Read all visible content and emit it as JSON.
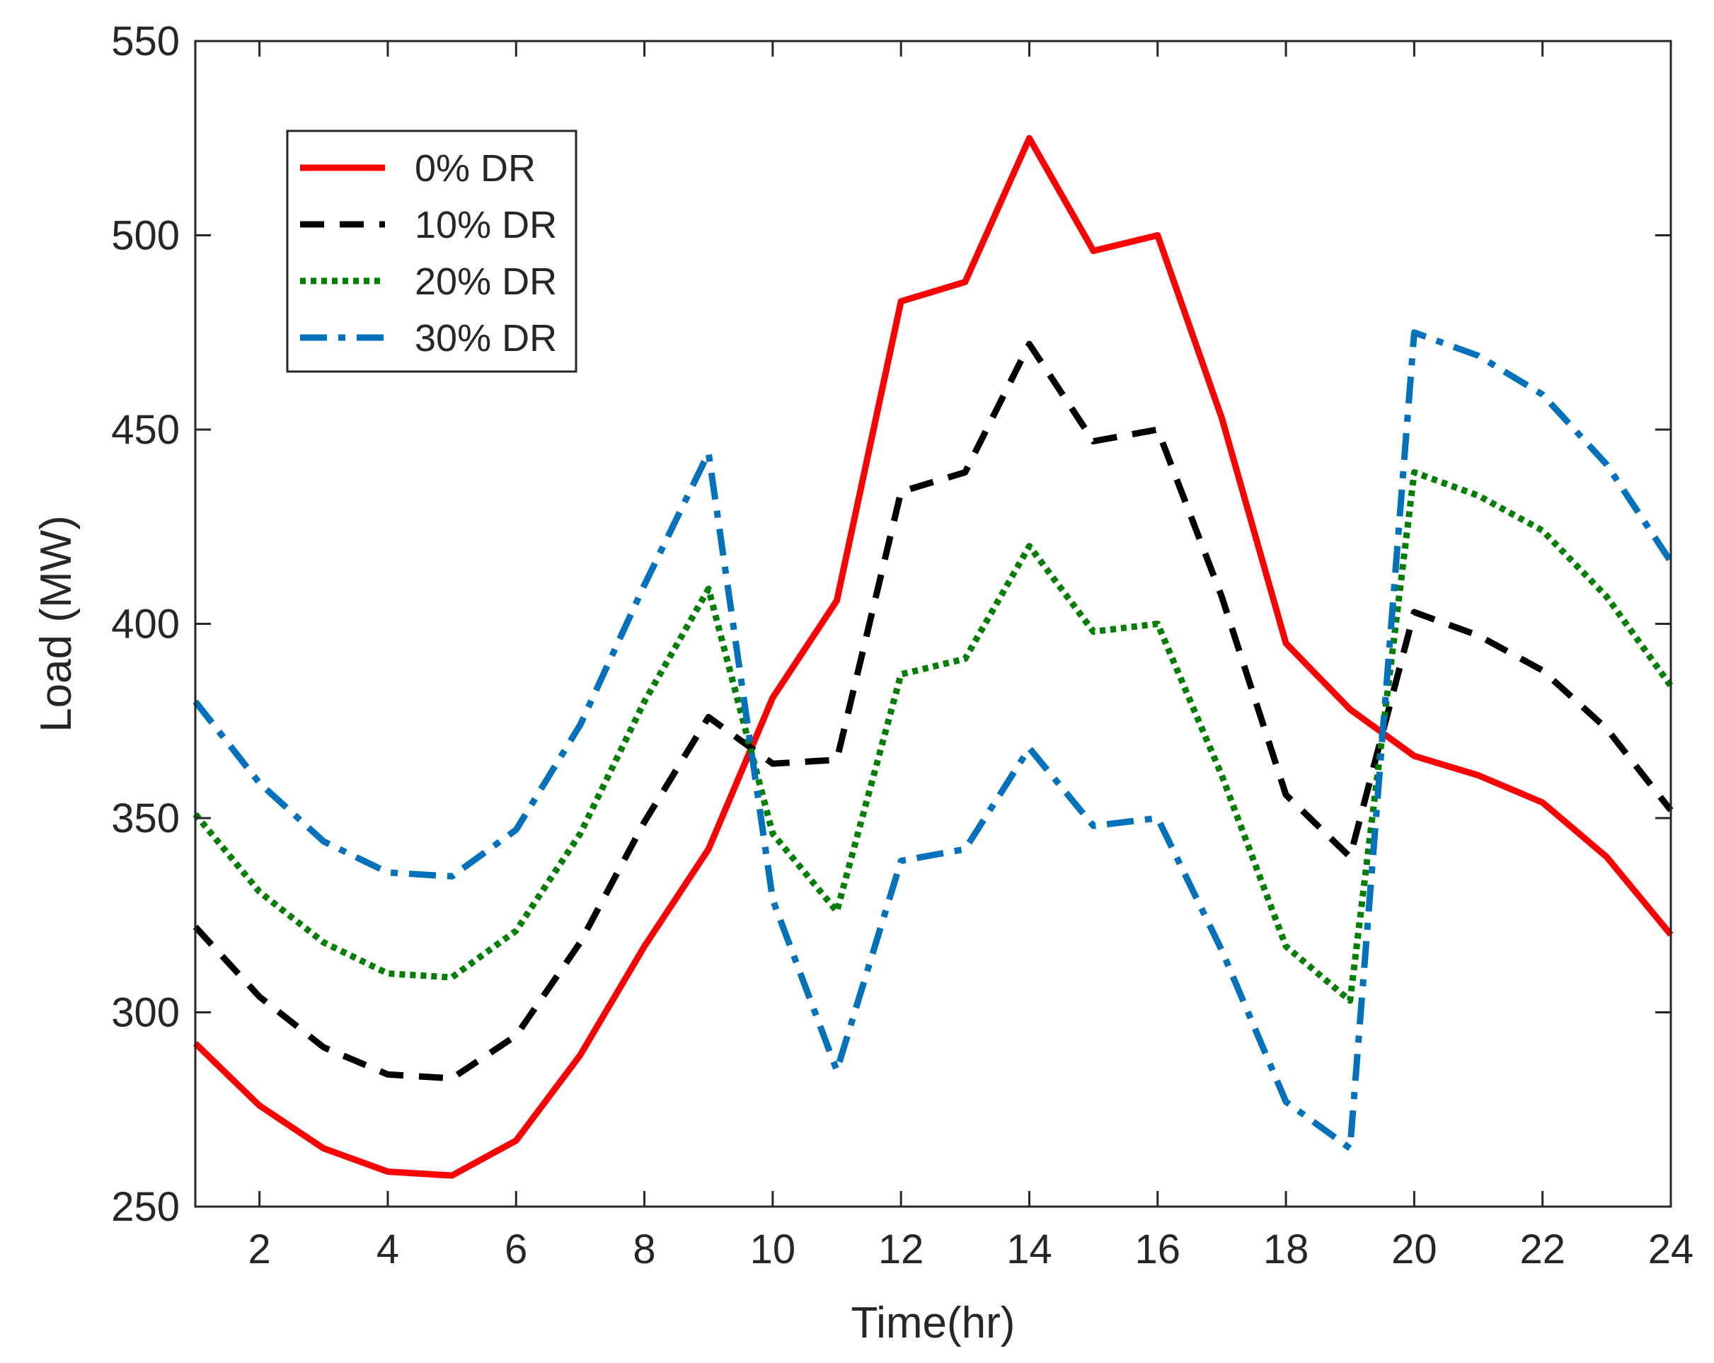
{
  "chart_data": {
    "type": "line",
    "title": "",
    "xlabel": "Time(hr)",
    "ylabel": "Load (MW)",
    "xlim": [
      1,
      24
    ],
    "ylim": [
      250,
      550
    ],
    "xticks": [
      2,
      4,
      6,
      8,
      10,
      12,
      14,
      16,
      18,
      20,
      22,
      24
    ],
    "yticks": [
      250,
      300,
      350,
      400,
      450,
      500,
      550
    ],
    "grid": false,
    "legend_position": "top-left",
    "x": [
      1,
      2,
      3,
      4,
      5,
      6,
      7,
      8,
      9,
      10,
      11,
      12,
      13,
      14,
      15,
      16,
      17,
      18,
      19,
      20,
      21,
      22,
      23,
      24
    ],
    "series": [
      {
        "name": "0% DR",
        "color": "#ff0000",
        "style": "solid",
        "values": [
          292,
          276,
          265,
          259,
          258,
          267,
          289,
          317,
          342,
          381,
          406,
          483,
          488,
          525,
          496,
          500,
          453,
          395,
          378,
          366,
          361,
          354,
          340,
          320
        ]
      },
      {
        "name": "10% DR",
        "color": "#000000",
        "style": "dashed",
        "values": [
          322,
          304,
          291,
          284,
          283,
          294,
          318,
          349,
          376,
          364,
          365,
          434,
          439,
          472,
          447,
          450,
          407,
          356,
          340,
          403,
          397,
          388,
          373,
          352
        ]
      },
      {
        "name": "20% DR",
        "color": "#007f00",
        "style": "dotted",
        "values": [
          351,
          331,
          318,
          310,
          309,
          321,
          346,
          380,
          409,
          346,
          326,
          387,
          391,
          420,
          398,
          400,
          361,
          317,
          303,
          439,
          433,
          424,
          407,
          384
        ]
      },
      {
        "name": "30% DR",
        "color": "#0072bd",
        "style": "dashdot",
        "values": [
          380,
          359,
          344,
          336,
          335,
          347,
          374,
          410,
          444,
          329,
          285,
          339,
          342,
          368,
          348,
          350,
          316,
          277,
          265,
          475,
          469,
          459,
          441,
          416
        ]
      }
    ]
  }
}
